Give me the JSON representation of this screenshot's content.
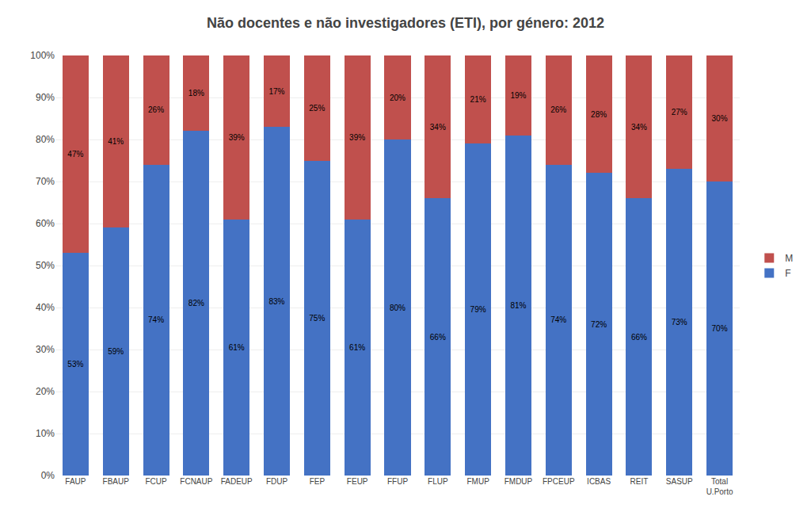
{
  "chart_data": {
    "type": "bar",
    "stacked": true,
    "title": "Não docentes e não investigadores (ETI), por género: 2012",
    "categories": [
      "FAUP",
      "FBAUP",
      "FCUP",
      "FCNAUP",
      "FADEUP",
      "FDUP",
      "FEP",
      "FEUP",
      "FFUP",
      "FLUP",
      "FMUP",
      "FMDUP",
      "FPCEUP",
      "ICBAS",
      "REIT",
      "SASUP",
      "Total\nU.Porto"
    ],
    "series": [
      {
        "name": "F",
        "color": "#4472C4",
        "values": [
          53,
          59,
          74,
          82,
          61,
          83,
          75,
          61,
          80,
          66,
          79,
          81,
          74,
          72,
          66,
          73,
          70
        ],
        "value_labels": [
          "53%",
          "59%",
          "74%",
          "82%",
          "61%",
          "83%",
          "75%",
          "61%",
          "80%",
          "66%",
          "79%",
          "81%",
          "74%",
          "72%",
          "66%",
          "73%",
          "70%"
        ]
      },
      {
        "name": "M",
        "color": "#C0504D",
        "values": [
          47,
          41,
          26,
          18,
          39,
          17,
          25,
          39,
          20,
          34,
          21,
          19,
          26,
          28,
          34,
          27,
          30
        ],
        "value_labels": [
          "47%",
          "41%",
          "26%",
          "18%",
          "39%",
          "17%",
          "25%",
          "39%",
          "20%",
          "34%",
          "21%",
          "19%",
          "26%",
          "28%",
          "34%",
          "27%",
          "30%"
        ]
      }
    ],
    "ylim": [
      0,
      100
    ],
    "yticks": [
      {
        "value": 0,
        "label": "0%"
      },
      {
        "value": 10,
        "label": "10%"
      },
      {
        "value": 20,
        "label": "20%"
      },
      {
        "value": 30,
        "label": "30%"
      },
      {
        "value": 40,
        "label": "40%"
      },
      {
        "value": 50,
        "label": "50%"
      },
      {
        "value": 60,
        "label": "60%"
      },
      {
        "value": 70,
        "label": "70%"
      },
      {
        "value": 80,
        "label": "80%"
      },
      {
        "value": 90,
        "label": "90%"
      },
      {
        "value": 100,
        "label": "100%"
      }
    ],
    "grid": true,
    "legend": "right",
    "data_labels": true
  }
}
